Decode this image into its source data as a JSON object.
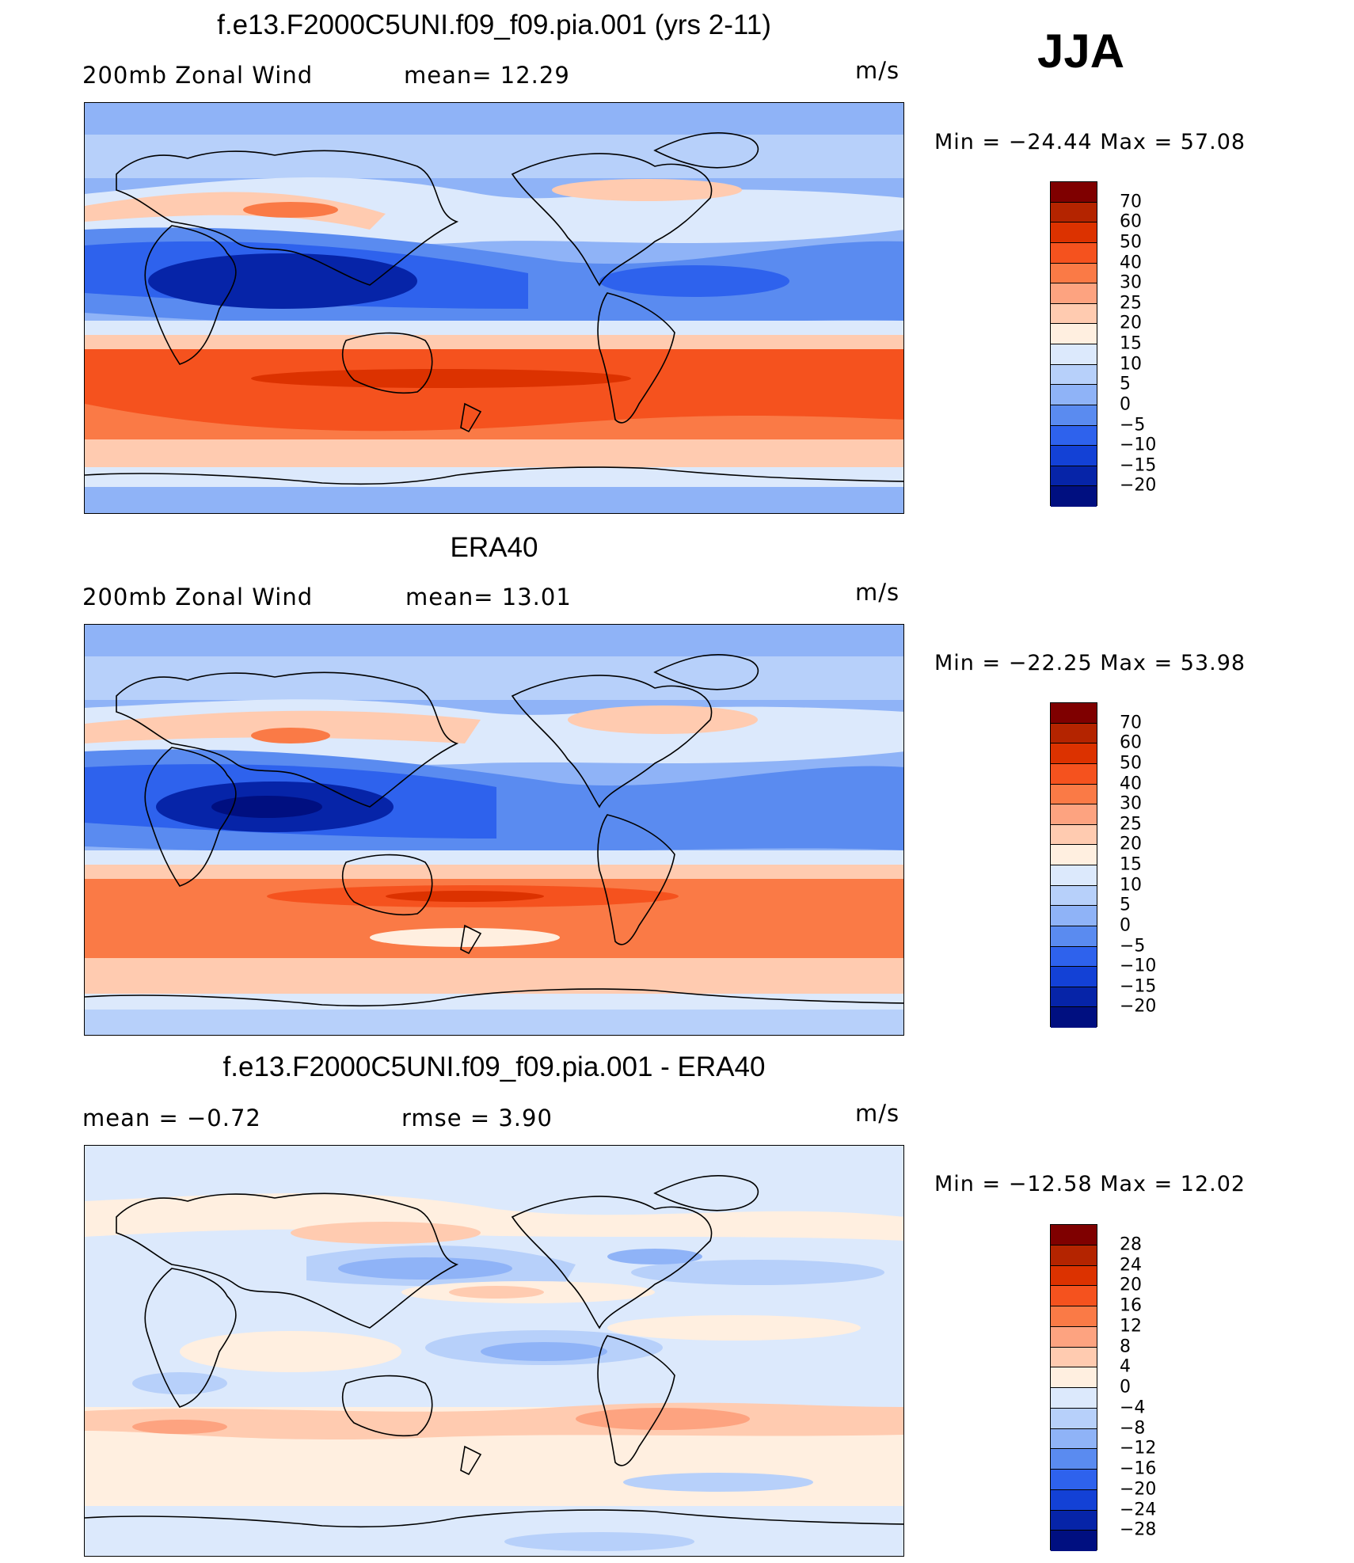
{
  "season": "JJA",
  "panels": [
    {
      "id": "model",
      "title": "f.e13.F2000C5UNI.f09_f09.pia.001 (yrs 2-11)",
      "left_label": "200mb  Zonal  Wind",
      "mid_label": "mean=   12.29",
      "unit": "m/s",
      "minmax": "Min  =  −24.44  Max  =   57.08",
      "min": -24.44,
      "max": 57.08
    },
    {
      "id": "obs",
      "title": "ERA40",
      "left_label": "200mb  Zonal  Wind",
      "mid_label": "mean=   13.01",
      "unit": "m/s",
      "minmax": "Min  =  −22.25  Max  =   53.98",
      "min": -22.25,
      "max": 53.98
    },
    {
      "id": "diff",
      "title": "f.e13.F2000C5UNI.f09_f09.pia.001 - ERA40",
      "left_label": "mean  =    −0.72",
      "mid_label": "rmse  =     3.90",
      "unit": "m/s",
      "minmax": "Min  =  −12.58  Max  =   12.02",
      "min": -12.58,
      "max": 12.02
    }
  ],
  "colorbar_full": {
    "labels": [
      "70",
      "60",
      "50",
      "40",
      "30",
      "25",
      "20",
      "15",
      "10",
      "5",
      "0",
      "−5",
      "−10",
      "−15",
      "−20"
    ],
    "colors": [
      "#7f0000",
      "#b42400",
      "#dc3200",
      "#f5521e",
      "#fa7a46",
      "#fda380",
      "#ffcbb0",
      "#ffefe0",
      "#dce9fc",
      "#b7d0fa",
      "#8fb3f7",
      "#5a8bf0",
      "#2e62ed",
      "#1341d6",
      "#0624a8",
      "#000f80"
    ]
  },
  "colorbar_diff": {
    "labels": [
      "28",
      "24",
      "20",
      "16",
      "12",
      "8",
      "4",
      "0",
      "−4",
      "−8",
      "−12",
      "−16",
      "−20",
      "−24",
      "−28"
    ],
    "colors": [
      "#7f0000",
      "#b42400",
      "#dc3200",
      "#f5521e",
      "#fa7a46",
      "#fda380",
      "#ffcbb0",
      "#ffefe0",
      "#dce9fc",
      "#b7d0fa",
      "#8fb3f7",
      "#5a8bf0",
      "#2e62ed",
      "#1341d6",
      "#0624a8",
      "#000f80"
    ]
  }
}
